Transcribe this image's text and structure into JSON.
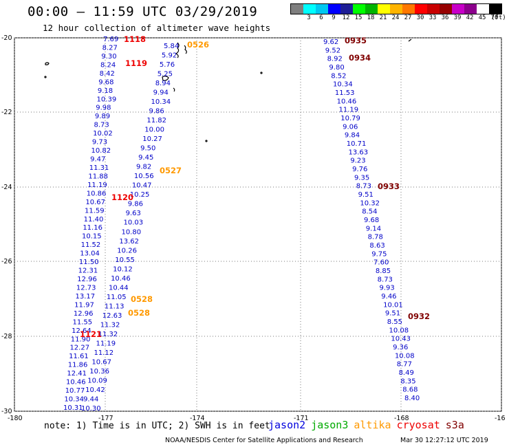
{
  "header": {
    "title": "00:00 – 11:59 UTC 03/29/2019",
    "subtitle": "12 hour collection of altimeter wave heights"
  },
  "colorbar": {
    "colors": [
      "#7f7f7f",
      "#00ffff",
      "#00c8f0",
      "#0000ff",
      "#1e1e96",
      "#00ff00",
      "#00b400",
      "#ffff00",
      "#ffb400",
      "#ff7800",
      "#ff0000",
      "#c80000",
      "#960000",
      "#c800c8",
      "#8c008c",
      "#ffffff",
      "#000000"
    ],
    "labels": [
      "3",
      "6",
      "9",
      "12",
      "15",
      "18",
      "21",
      "24",
      "27",
      "30",
      "33",
      "36",
      "39",
      "42",
      "45",
      "70"
    ],
    "unit": "(ft)"
  },
  "axes": {
    "lat_labels": [
      "-20",
      "-22",
      "-24",
      "-26",
      "-28",
      "-30"
    ],
    "lon_labels": [
      "-180",
      "-177",
      "-174",
      "-171",
      "-168",
      "-16"
    ]
  },
  "tracks": {
    "track_a": {
      "values": [
        "7.69",
        "8.27",
        "9.30",
        "8.24",
        "8.42",
        "9.68",
        "9.18",
        "10.39",
        "9.98",
        "9.89",
        "8.73",
        "10.02",
        "9.73",
        "10.82",
        "9.47",
        "11.31",
        "11.88",
        "11.19",
        "10.86",
        "10.67",
        "11.59",
        "11.40",
        "11.16",
        "10.15",
        "11.52",
        "13.04",
        "11.50",
        "12.31",
        "12.96",
        "12.73",
        "13.17",
        "11.97",
        "12.96",
        "11.55",
        "12.64",
        "11.90",
        "12.27",
        "11.61",
        "11.86",
        "12.41",
        "10.46",
        "10.77",
        "10.34",
        "10.31"
      ],
      "colors": [
        "#00c8f0",
        "#00c8f0",
        "#0000c8",
        "#0000c8",
        "#00c8f0",
        "#0000c8",
        "#0000c8",
        "#0000c8",
        "#0000c8",
        "#0000c8",
        "#00c8f0",
        "#0000c8",
        "#0000c8",
        "#0000c8",
        "#0000c8",
        "#0000c8",
        "#0000c8",
        "#0000c8",
        "#0000c8",
        "#0000c8",
        "#0000c8",
        "#0000c8",
        "#0000c8",
        "#0000c8",
        "#0000c8",
        "#33dd33",
        "#0000c8",
        "#33dd33",
        "#33dd33",
        "#33dd33",
        "#33dd33",
        "#0000c8",
        "#33dd33",
        "#0000c8",
        "#33dd33",
        "#0000c8",
        "#33dd33",
        "#0000c8",
        "#0000c8",
        "#33dd33",
        "#0000c8",
        "#0000c8",
        "#0000c8",
        "#0000c8"
      ]
    },
    "track_b": {
      "values": [
        "5.84",
        "5.92",
        "5.76",
        "5.25",
        "8.94",
        "9.94",
        "10.34",
        "9.86",
        "11.82",
        "10.00",
        "10.27",
        "9.50",
        "9.45",
        "9.82",
        "10.56",
        "10.47",
        "10.25",
        "9.86",
        "9.63",
        "10.03",
        "10.80",
        "13.62",
        "10.26",
        "10.55",
        "10.12",
        "10.46",
        "10.44",
        "11.05",
        "11.13",
        "12.63",
        "11.32",
        "11.32",
        "11.19",
        "11.12",
        "10.67",
        "10.36",
        "10.09",
        "10.42",
        "9.44",
        "10.30"
      ],
      "colors": [
        "#00c8f0",
        "#00c8f0",
        "#00c8f0",
        "#00c8f0",
        "#00c8f0",
        "#0000c8",
        "#0000c8",
        "#0000c8",
        "#0000c8",
        "#0000c8",
        "#0000c8",
        "#0000c8",
        "#0000c8",
        "#0000c8",
        "#0000c8",
        "#0000c8",
        "#0000c8",
        "#0000c8",
        "#0000c8",
        "#0000c8",
        "#0000c8",
        "#33dd33",
        "#0000c8",
        "#0000c8",
        "#0000c8",
        "#0000c8",
        "#0000c8",
        "#0000c8",
        "#0000c8",
        "#33dd33",
        "#0000c8",
        "#0000c8",
        "#0000c8",
        "#0000c8",
        "#0000c8",
        "#0000c8",
        "#0000c8",
        "#0000c8",
        "#0000c8",
        "#0000c8"
      ]
    },
    "track_c": {
      "values": [
        "9.62",
        "9.52",
        "8.92",
        "9.80",
        "8.52",
        "10.34",
        "11.53",
        "10.46",
        "11.19",
        "10.79",
        "9.06",
        "9.84",
        "10.71",
        "13.63",
        "9.23",
        "9.76",
        "9.35",
        "8.73",
        "9.51",
        "10.32",
        "8.54",
        "9.68",
        "9.14",
        "8.78",
        "8.63",
        "9.75",
        "7.60",
        "8.85",
        "8.73",
        "9.93",
        "9.46",
        "10.01",
        "9.51",
        "8.55",
        "10.08",
        "10.43",
        "9.36",
        "10.08",
        "8.77",
        "8.49",
        "8.35",
        "8.68",
        "8.40"
      ],
      "colors": [
        "#0000c8",
        "#0000c8",
        "#00c8f0",
        "#0000c8",
        "#00c8f0",
        "#0000c8",
        "#0000c8",
        "#0000c8",
        "#0000c8",
        "#0000c8",
        "#0000c8",
        "#0000c8",
        "#0000c8",
        "#33dd33",
        "#0000c8",
        "#0000c8",
        "#0000c8",
        "#00c8f0",
        "#0000c8",
        "#0000c8",
        "#00c8f0",
        "#0000c8",
        "#0000c8",
        "#00c8f0",
        "#00c8f0",
        "#0000c8",
        "#00c8f0",
        "#00c8f0",
        "#00c8f0",
        "#0000c8",
        "#0000c8",
        "#0000c8",
        "#0000c8",
        "#00c8f0",
        "#0000c8",
        "#0000c8",
        "#0000c8",
        "#0000c8",
        "#00c8f0",
        "#00c8f0",
        "#00c8f0",
        "#00c8f0",
        "#00c8f0"
      ]
    }
  },
  "time_labels": [
    {
      "text": "1118",
      "color": "#ee0000"
    },
    {
      "text": "1119",
      "color": "#ee0000"
    },
    {
      "text": "1120",
      "color": "#ee0000"
    },
    {
      "text": "1121",
      "color": "#ee0000"
    },
    {
      "text": "0526",
      "color": "#ff9900"
    },
    {
      "text": "0527",
      "color": "#ff9900"
    },
    {
      "text": "0528",
      "color": "#ff9900"
    },
    {
      "text": "0528",
      "color": "#ff9900"
    },
    {
      "text": "0935",
      "color": "#800000"
    },
    {
      "text": "0934",
      "color": "#800000"
    },
    {
      "text": "0933",
      "color": "#800000"
    },
    {
      "text": "0932",
      "color": "#800000"
    }
  ],
  "note": "note: 1) Time is in UTC; 2) SWH is in feet",
  "legend": [
    {
      "text": "jason2",
      "color": "#0000dd"
    },
    {
      "text": "jason3",
      "color": "#00aa00"
    },
    {
      "text": "altika",
      "color": "#ff9900"
    },
    {
      "text": "cryosat",
      "color": "#ee0000"
    },
    {
      "text": "s3a",
      "color": "#800000"
    }
  ],
  "footer": {
    "credit": "NOAA/NESDIS Center for Satellite Applications and Research",
    "date": "Mar 30 12:27:12 UTC 2019"
  }
}
